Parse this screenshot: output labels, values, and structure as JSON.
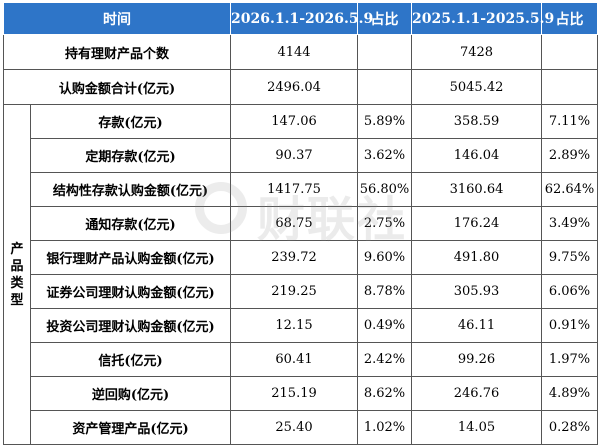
{
  "header": {
    "time": "时间",
    "period1": "2026.1.1-2026.5.9",
    "share1": "占比",
    "period2": "2025.1.1-2025.5.9",
    "share2": "占比"
  },
  "summary": [
    {
      "label": "持有理财产品个数",
      "v1": "4144",
      "v2": "7428"
    },
    {
      "label": "认购金额合计(亿元)",
      "v1": "2496.04",
      "v2": "5045.42"
    }
  ],
  "category_label_chars": [
    "产",
    "品",
    "类",
    "型"
  ],
  "rows": [
    {
      "label": "存款(亿元)",
      "v1": "147.06",
      "p1": "5.89%",
      "v2": "358.59",
      "p2": "7.11%"
    },
    {
      "label": "定期存款(亿元)",
      "v1": "90.37",
      "p1": "3.62%",
      "v2": "146.04",
      "p2": "2.89%"
    },
    {
      "label": "结构性存款认购金额(亿元)",
      "v1": "1417.75",
      "p1": "56.80%",
      "v2": "3160.64",
      "p2": "62.64%"
    },
    {
      "label": "通知存款(亿元)",
      "v1": "68.75",
      "p1": "2.75%",
      "v2": "176.24",
      "p2": "3.49%"
    },
    {
      "label": "银行理财产品认购金额(亿元)",
      "v1": "239.72",
      "p1": "9.60%",
      "v2": "491.80",
      "p2": "9.75%"
    },
    {
      "label": "证券公司理财认购金额(亿元)",
      "v1": "219.25",
      "p1": "8.78%",
      "v2": "305.93",
      "p2": "6.06%"
    },
    {
      "label": "投资公司理财认购金额(亿元)",
      "v1": "12.15",
      "p1": "0.49%",
      "v2": "46.11",
      "p2": "0.91%"
    },
    {
      "label": "信托(亿元)",
      "v1": "60.41",
      "p1": "2.42%",
      "v2": "99.26",
      "p2": "1.97%"
    },
    {
      "label": "逆回购(亿元)",
      "v1": "215.19",
      "p1": "8.62%",
      "v2": "246.76",
      "p2": "4.89%"
    },
    {
      "label": "资产管理产品(亿元)",
      "v1": "25.40",
      "p1": "1.02%",
      "v2": "14.05",
      "p2": "0.28%"
    }
  ],
  "watermark": {
    "text": "财联社"
  }
}
